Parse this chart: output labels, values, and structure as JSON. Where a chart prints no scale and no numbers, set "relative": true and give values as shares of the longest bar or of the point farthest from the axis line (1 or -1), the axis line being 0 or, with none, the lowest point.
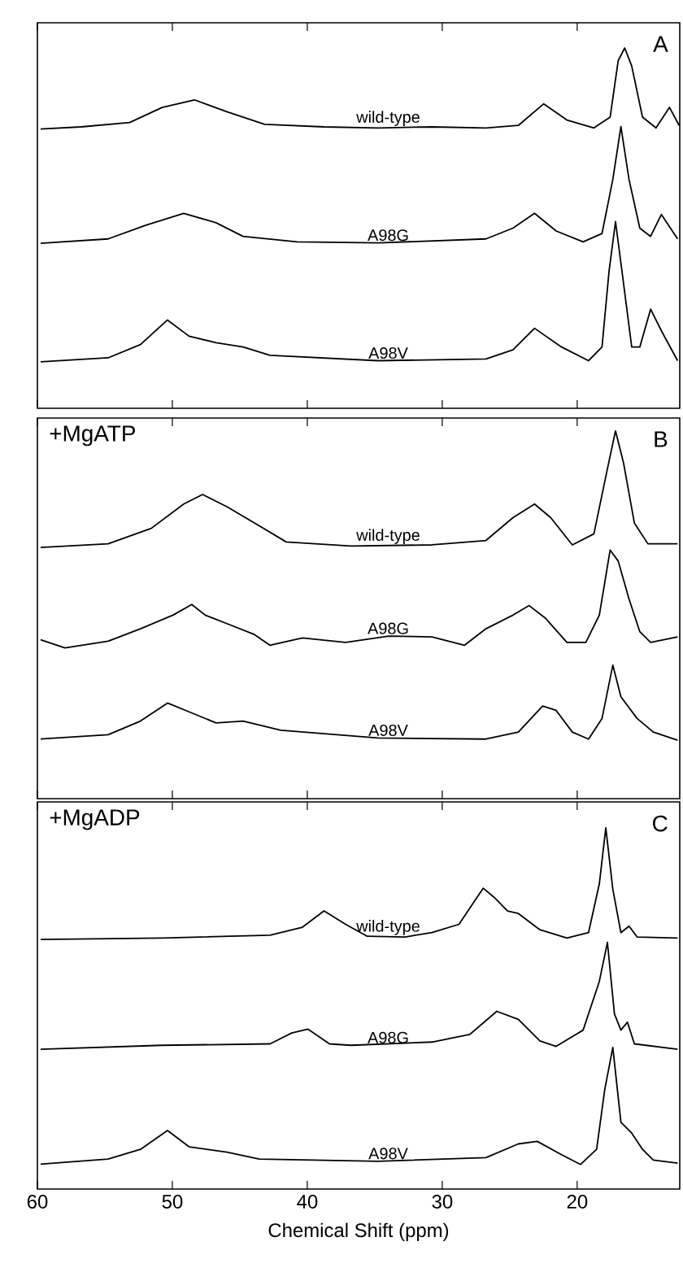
{
  "chart_data": [
    {
      "type": "line",
      "relative": true,
      "xlim": [
        60,
        12.4
      ],
      "xticks": [
        60,
        50,
        40,
        30,
        20
      ],
      "tick_labels": false,
      "line_style": "solid",
      "annotations": [
        "A"
      ],
      "series": [
        {
          "name": "wild-type",
          "color": "#000000",
          "x": [
            59.76,
            56.76,
            53.16,
            50.76,
            48.36,
            45.96,
            43.16,
            38.76,
            34.76,
            30.76,
            26.76,
            24.36,
            22.48,
            20.76,
            18.76,
            17.56,
            16.96,
            16.48,
            15.96,
            15.16,
            14.16,
            13.16,
            12.44
          ],
          "values": [
            0.775,
            0.781,
            0.793,
            0.835,
            0.856,
            0.823,
            0.788,
            0.781,
            0.778,
            0.781,
            0.778,
            0.785,
            0.845,
            0.8,
            0.778,
            0.808,
            0.965,
            1.0,
            0.95,
            0.808,
            0.778,
            0.835,
            0.785
          ]
        },
        {
          "name": "A98G",
          "color": "#000000",
          "x": [
            59.76,
            54.76,
            51.96,
            49.16,
            46.76,
            44.76,
            40.76,
            34.76,
            26.76,
            24.76,
            23.16,
            21.56,
            19.56,
            18.16,
            17.36,
            16.76,
            16.16,
            15.36,
            14.56,
            13.76,
            12.56
          ],
          "values": [
            0.458,
            0.47,
            0.508,
            0.541,
            0.515,
            0.477,
            0.462,
            0.459,
            0.47,
            0.5,
            0.541,
            0.492,
            0.462,
            0.485,
            0.635,
            0.782,
            0.635,
            0.5,
            0.477,
            0.538,
            0.47
          ]
        },
        {
          "name": "A98V",
          "color": "#000000",
          "x": [
            59.76,
            54.76,
            52.36,
            50.36,
            48.76,
            46.76,
            44.76,
            42.76,
            34.76,
            26.76,
            24.76,
            23.16,
            21.16,
            19.16,
            18.16,
            17.64,
            17.16,
            16.68,
            15.96,
            15.36,
            14.56,
            13.76,
            12.56
          ],
          "values": [
            0.129,
            0.14,
            0.177,
            0.245,
            0.2,
            0.182,
            0.17,
            0.147,
            0.132,
            0.137,
            0.162,
            0.222,
            0.17,
            0.132,
            0.17,
            0.38,
            0.518,
            0.38,
            0.17,
            0.17,
            0.275,
            0.215,
            0.132
          ]
        }
      ]
    },
    {
      "type": "line",
      "relative": true,
      "title": "+MgATP",
      "xlim": [
        60,
        12.4
      ],
      "xticks": [
        60,
        50,
        40,
        30,
        20
      ],
      "tick_labels": false,
      "line_style": "solid",
      "annotations": [
        "B"
      ],
      "series": [
        {
          "name": "wild-type",
          "color": "#000000",
          "x": [
            59.76,
            54.76,
            51.56,
            49.16,
            47.76,
            45.96,
            43.56,
            41.56,
            36.76,
            30.76,
            26.76,
            24.76,
            23.16,
            21.96,
            20.36,
            18.76,
            17.76,
            17.16,
            16.56,
            15.76,
            14.76,
            12.56
          ],
          "values": [
            0.683,
            0.693,
            0.735,
            0.801,
            0.827,
            0.794,
            0.742,
            0.698,
            0.687,
            0.69,
            0.702,
            0.764,
            0.801,
            0.764,
            0.69,
            0.72,
            0.897,
            1.0,
            0.912,
            0.749,
            0.693,
            0.693
          ]
        },
        {
          "name": "A98G",
          "color": "#000000",
          "x": [
            59.76,
            57.96,
            54.76,
            52.36,
            49.96,
            48.56,
            47.56,
            45.96,
            43.96,
            42.76,
            40.36,
            37.16,
            33.96,
            30.76,
            28.36,
            26.76,
            24.76,
            23.56,
            22.36,
            20.76,
            19.36,
            18.36,
            17.56,
            16.96,
            16.16,
            15.36,
            14.56,
            12.56
          ],
          "values": [
            0.432,
            0.41,
            0.428,
            0.462,
            0.499,
            0.528,
            0.499,
            0.476,
            0.447,
            0.417,
            0.437,
            0.425,
            0.442,
            0.44,
            0.417,
            0.462,
            0.499,
            0.525,
            0.491,
            0.425,
            0.425,
            0.499,
            0.676,
            0.646,
            0.543,
            0.454,
            0.425,
            0.44
          ]
        },
        {
          "name": "A98V",
          "color": "#000000",
          "x": [
            59.76,
            54.76,
            52.36,
            50.36,
            48.76,
            46.76,
            44.76,
            41.96,
            34.76,
            26.76,
            24.36,
            22.56,
            21.56,
            20.36,
            19.16,
            18.16,
            17.36,
            16.76,
            15.56,
            14.36,
            12.56
          ],
          "values": [
            0.162,
            0.174,
            0.211,
            0.26,
            0.236,
            0.206,
            0.211,
            0.186,
            0.165,
            0.162,
            0.181,
            0.252,
            0.24,
            0.181,
            0.162,
            0.218,
            0.363,
            0.277,
            0.218,
            0.181,
            0.159
          ]
        }
      ]
    },
    {
      "type": "line",
      "relative": true,
      "title": "+MgADP",
      "xlabel": "Chemical Shift (ppm)",
      "xlim": [
        60,
        12.4
      ],
      "xticks": [
        60,
        50,
        40,
        30,
        20
      ],
      "tick_labels": "x",
      "line_style": "solid",
      "annotations": [
        "C"
      ],
      "series": [
        {
          "name": "wild-type",
          "color": "#000000",
          "x": [
            59.76,
            50.76,
            42.76,
            40.36,
            38.76,
            37.16,
            35.56,
            32.76,
            30.76,
            28.76,
            27.56,
            26.96,
            26.16,
            25.16,
            24.36,
            22.76,
            20.76,
            19.16,
            18.36,
            17.88,
            17.36,
            16.76,
            16.16,
            15.56,
            12.56
          ],
          "values": [
            0.691,
            0.695,
            0.703,
            0.725,
            0.77,
            0.733,
            0.7,
            0.698,
            0.71,
            0.733,
            0.8,
            0.833,
            0.808,
            0.77,
            0.763,
            0.718,
            0.695,
            0.71,
            0.845,
            1.0,
            0.83,
            0.71,
            0.728,
            0.698,
            0.695
          ]
        },
        {
          "name": "A98G",
          "color": "#000000",
          "x": [
            59.76,
            50.76,
            42.76,
            41.16,
            39.96,
            38.36,
            36.76,
            30.76,
            27.96,
            25.96,
            24.36,
            22.76,
            21.56,
            19.56,
            18.36,
            17.76,
            17.24,
            16.76,
            16.28,
            15.76,
            12.56
          ],
          "values": [
            0.387,
            0.398,
            0.402,
            0.432,
            0.443,
            0.402,
            0.398,
            0.407,
            0.428,
            0.492,
            0.47,
            0.41,
            0.395,
            0.44,
            0.575,
            0.683,
            0.485,
            0.44,
            0.462,
            0.402,
            0.387
          ]
        },
        {
          "name": "A98V",
          "color": "#000000",
          "x": [
            59.76,
            54.76,
            52.36,
            50.36,
            48.76,
            45.96,
            43.56,
            34.76,
            26.76,
            24.36,
            22.96,
            21.16,
            19.76,
            18.56,
            17.96,
            17.36,
            16.76,
            15.96,
            15.16,
            14.36,
            12.56
          ],
          "values": [
            0.069,
            0.083,
            0.11,
            0.162,
            0.117,
            0.102,
            0.083,
            0.077,
            0.087,
            0.125,
            0.132,
            0.095,
            0.068,
            0.11,
            0.275,
            0.392,
            0.185,
            0.155,
            0.11,
            0.08,
            0.072
          ]
        }
      ]
    }
  ]
}
